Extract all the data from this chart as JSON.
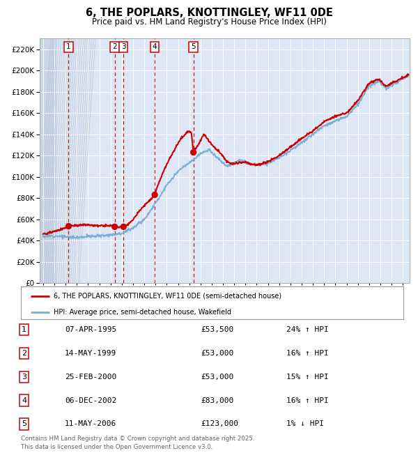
{
  "title_line1": "6, THE POPLARS, KNOTTINGLEY, WF11 0DE",
  "title_line2": "Price paid vs. HM Land Registry's House Price Index (HPI)",
  "red_label": "6, THE POPLARS, KNOTTINGLEY, WF11 0DE (semi-detached house)",
  "blue_label": "HPI: Average price, semi-detached house, Wakefield",
  "footer_line1": "Contains HM Land Registry data © Crown copyright and database right 2025.",
  "footer_line2": "This data is licensed under the Open Government Licence v3.0.",
  "transactions": [
    {
      "num": 1,
      "date": "07-APR-1995",
      "price": 53500,
      "pct": "24%",
      "dir": "↑"
    },
    {
      "num": 2,
      "date": "14-MAY-1999",
      "price": 53000,
      "pct": "16%",
      "dir": "↑"
    },
    {
      "num": 3,
      "date": "25-FEB-2000",
      "price": 53000,
      "pct": "15%",
      "dir": "↑"
    },
    {
      "num": 4,
      "date": "06-DEC-2002",
      "price": 83000,
      "pct": "16%",
      "dir": "↑"
    },
    {
      "num": 5,
      "date": "11-MAY-2006",
      "price": 123000,
      "pct": "1%",
      "dir": "↓"
    }
  ],
  "vline_years": [
    1995.27,
    1999.37,
    2000.15,
    2002.93,
    2006.37
  ],
  "trans_x": [
    1995.27,
    1999.37,
    2000.15,
    2002.93,
    2006.37
  ],
  "trans_y": [
    53500,
    53000,
    53000,
    83000,
    123000
  ],
  "ylim": [
    0,
    230000
  ],
  "yticks": [
    0,
    20000,
    40000,
    60000,
    80000,
    100000,
    120000,
    140000,
    160000,
    180000,
    200000,
    220000
  ],
  "xlim_left": 1992.7,
  "xlim_right": 2025.6,
  "hatch_end": 1994.2,
  "plot_bg": "#dce6f5",
  "red_color": "#cc0000",
  "blue_color": "#7bafd4",
  "grid_color": "#ffffff",
  "vline_color": "#cc0000",
  "box_color": "#cc0000",
  "hatch_fill": "#c8d4e8",
  "hatch_edge": "#b0bcd0"
}
